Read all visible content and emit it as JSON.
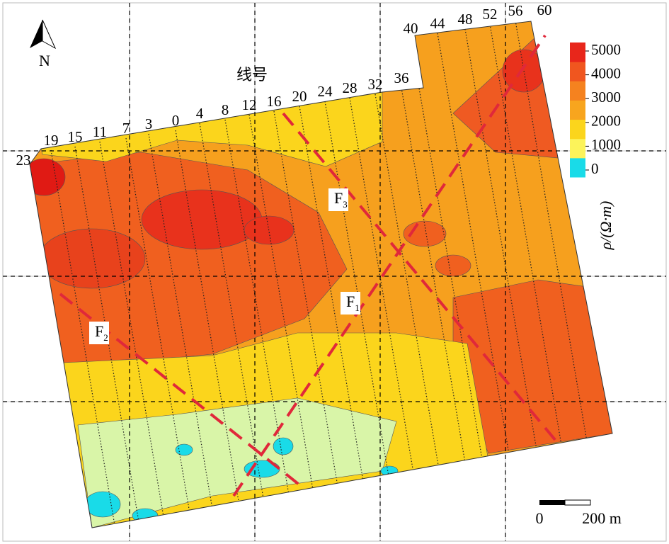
{
  "north": "N",
  "survey_line_label": "线号",
  "line_numbers": [
    "23",
    "19",
    "15",
    "11",
    "7",
    "3",
    "0",
    "4",
    "8",
    "12",
    "16",
    "20",
    "24",
    "28",
    "32",
    "36",
    "40",
    "44",
    "48",
    "52",
    "56",
    "60"
  ],
  "faults": [
    {
      "label": "F",
      "subscript": "3"
    },
    {
      "label": "F",
      "subscript": "1"
    },
    {
      "label": "F",
      "subscript": "2"
    }
  ],
  "colorbar": {
    "ticks": [
      0,
      1000,
      2000,
      3000,
      4000,
      5000
    ],
    "range": [
      0,
      5000
    ],
    "label": "ρ/(Ω·m)"
  },
  "scale_bar": {
    "start": "0",
    "end": "200 m"
  }
}
